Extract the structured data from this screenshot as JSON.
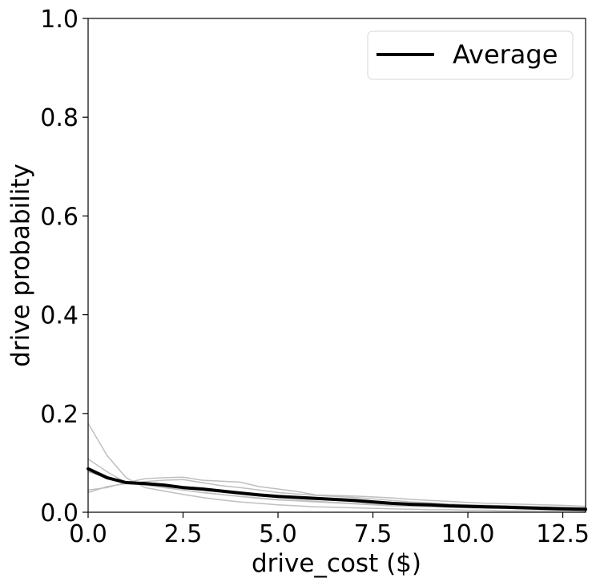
{
  "chart_data": {
    "type": "line",
    "xlabel": "drive_cost ($)",
    "ylabel": "drive probability",
    "xlim": [
      0,
      13.1
    ],
    "ylim": [
      0,
      1.0
    ],
    "xticks": [
      "0.0",
      "2.5",
      "5.0",
      "7.5",
      "10.0",
      "12.5"
    ],
    "yticks": [
      "0.0",
      "0.2",
      "0.4",
      "0.6",
      "0.8",
      "1.0"
    ],
    "grid": false,
    "legend": {
      "placement": "top-right",
      "entries": [
        "Average"
      ]
    },
    "colors": {
      "average": "#000000",
      "individual": "#bfbfbf"
    },
    "x": [
      0,
      0.5,
      1.0,
      1.5,
      2.0,
      2.5,
      3.0,
      3.5,
      4.0,
      4.5,
      5.0,
      5.5,
      6.0,
      6.5,
      7.0,
      7.5,
      8.0,
      8.5,
      9.0,
      9.5,
      10.0,
      10.5,
      11.0,
      11.5,
      12.0,
      12.5,
      13.1
    ],
    "series": [
      {
        "name": "Average",
        "style": "average",
        "values": [
          0.088,
          0.07,
          0.06,
          0.058,
          0.055,
          0.05,
          0.047,
          0.043,
          0.039,
          0.035,
          0.032,
          0.03,
          0.028,
          0.026,
          0.024,
          0.021,
          0.018,
          0.016,
          0.015,
          0.013,
          0.012,
          0.011,
          0.01,
          0.009,
          0.008,
          0.007,
          0.006
        ]
      },
      {
        "style": "individual",
        "values": [
          0.18,
          0.115,
          0.07,
          0.05,
          0.043,
          0.036,
          0.03,
          0.025,
          0.021,
          0.018,
          0.015,
          0.013,
          0.011,
          0.01,
          0.009,
          0.008,
          0.007,
          0.006,
          0.005,
          0.005,
          0.004,
          0.004,
          0.003,
          0.003,
          0.003,
          0.003,
          0.002
        ]
      },
      {
        "style": "individual",
        "values": [
          0.108,
          0.082,
          0.06,
          0.055,
          0.05,
          0.045,
          0.04,
          0.036,
          0.032,
          0.028,
          0.025,
          0.023,
          0.021,
          0.019,
          0.017,
          0.015,
          0.013,
          0.012,
          0.011,
          0.01,
          0.009,
          0.008,
          0.008,
          0.007,
          0.007,
          0.006,
          0.006
        ]
      },
      {
        "style": "individual",
        "values": [
          0.045,
          0.05,
          0.06,
          0.068,
          0.07,
          0.071,
          0.065,
          0.063,
          0.061,
          0.052,
          0.047,
          0.042,
          0.035,
          0.034,
          0.033,
          0.031,
          0.029,
          0.026,
          0.024,
          0.022,
          0.02,
          0.018,
          0.017,
          0.016,
          0.015,
          0.014,
          0.012
        ]
      },
      {
        "style": "individual",
        "values": [
          0.04,
          0.052,
          0.058,
          0.062,
          0.065,
          0.066,
          0.06,
          0.054,
          0.05,
          0.045,
          0.04,
          0.037,
          0.034,
          0.032,
          0.03,
          0.027,
          0.024,
          0.021,
          0.019,
          0.017,
          0.015,
          0.014,
          0.013,
          0.012,
          0.011,
          0.01,
          0.009
        ]
      },
      {
        "style": "individual",
        "values": [
          0.082,
          0.07,
          0.062,
          0.056,
          0.05,
          0.045,
          0.04,
          0.036,
          0.032,
          0.029,
          0.026,
          0.024,
          0.022,
          0.02,
          0.018,
          0.016,
          0.014,
          0.013,
          0.012,
          0.011,
          0.01,
          0.009,
          0.008,
          0.008,
          0.007,
          0.006,
          0.006
        ]
      }
    ]
  }
}
